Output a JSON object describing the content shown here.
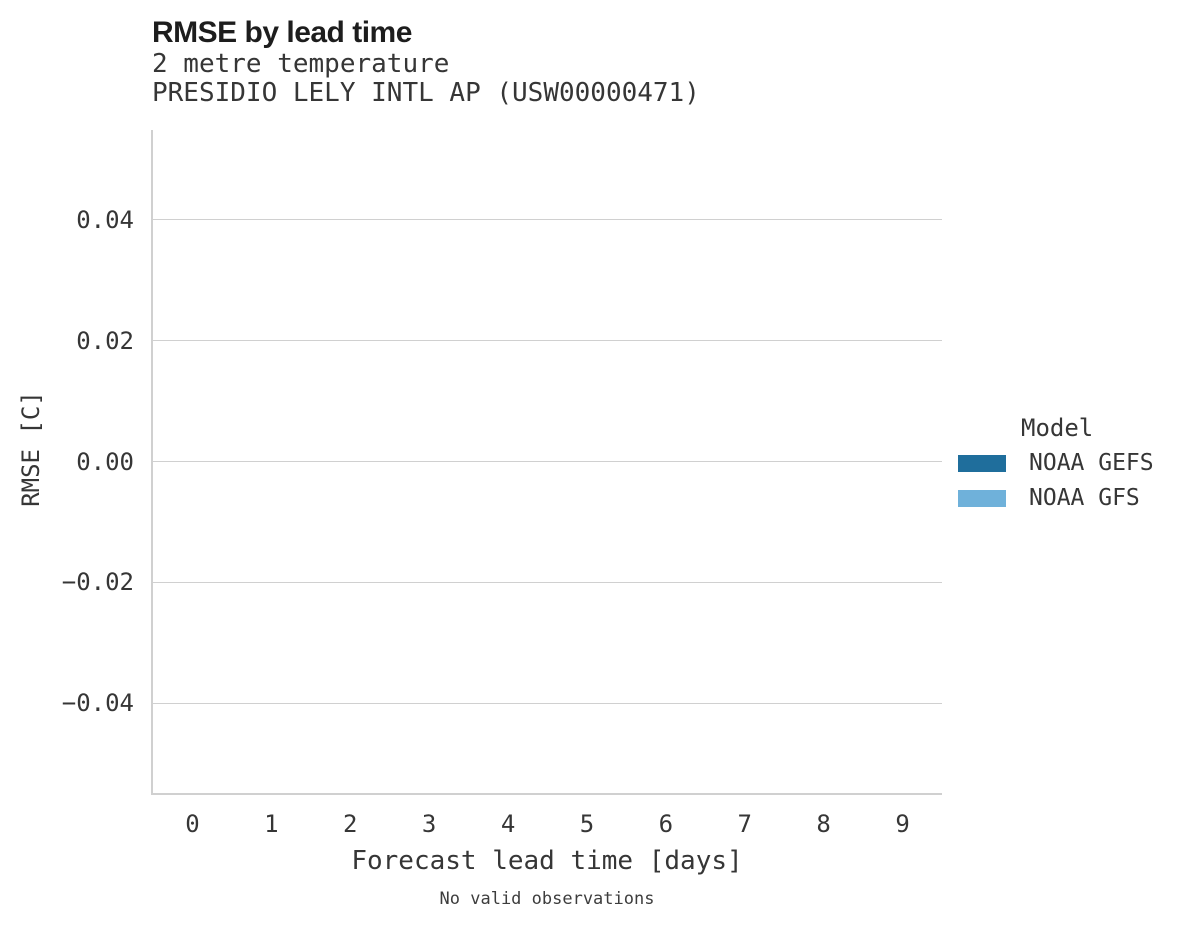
{
  "chart_data": {
    "type": "line",
    "title": "RMSE by lead time",
    "subtitle_lines": [
      "2 metre temperature",
      "PRESIDIO LELY INTL AP (USW00000471)"
    ],
    "xlabel": "Forecast lead time [days]",
    "ylabel": "RMSE [C]",
    "caption": "No valid observations",
    "grid": true,
    "xlim": [
      -0.5,
      9.5
    ],
    "ylim": [
      -0.0548,
      0.0548
    ],
    "x_ticks": [
      0,
      1,
      2,
      3,
      4,
      5,
      6,
      7,
      8,
      9
    ],
    "y_ticks": [
      {
        "value": 0.04,
        "label": "0.04"
      },
      {
        "value": 0.02,
        "label": "0.02"
      },
      {
        "value": 0.0,
        "label": "0.00"
      },
      {
        "value": -0.02,
        "label": "−0.02"
      },
      {
        "value": -0.04,
        "label": "−0.04"
      }
    ],
    "legend": {
      "title": "Model",
      "position": "right"
    },
    "series": [
      {
        "name": "NOAA GEFS",
        "color": "#1f6e9c",
        "values": []
      },
      {
        "name": "NOAA GFS",
        "color": "#6fb1da",
        "values": []
      }
    ]
  },
  "colors": {
    "grid": "#d0d0d0",
    "axis": "#d0d0d0",
    "title_text": "#1d1d1d",
    "body_text": "#363636"
  }
}
